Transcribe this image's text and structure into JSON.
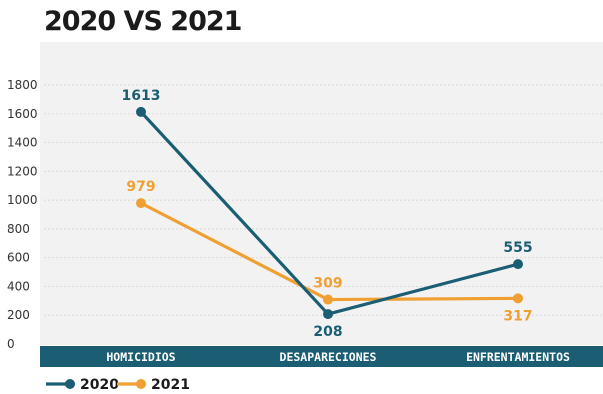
{
  "chart_data": {
    "type": "line",
    "title": "2020 VS 2021",
    "categories": [
      "HOMICIDIOS",
      "DESAPARECIONES",
      "ENFRENTAMIENTOS"
    ],
    "y_ticks": [
      0,
      200,
      400,
      600,
      800,
      1000,
      1200,
      1400,
      1600,
      1800
    ],
    "ylim": [
      0,
      1800
    ],
    "grid": true,
    "legend_position": "bottom-left",
    "series": [
      {
        "name": "2020",
        "values": [
          1613,
          208,
          555
        ],
        "color": "#1b5e74"
      },
      {
        "name": "2021",
        "values": [
          979,
          309,
          317
        ],
        "color": "#f0a033"
      }
    ],
    "colors": {
      "plot_background": "#f2f2f2",
      "category_band": "#1b5e74"
    }
  }
}
